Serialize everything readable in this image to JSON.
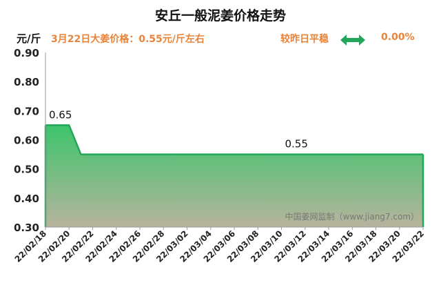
{
  "header": {
    "title": "安丘一般泥姜价格走势",
    "unit": "元/斤",
    "headline": "3月22日大姜价格：0.55元/斤左右",
    "trend_label": "较昨日平稳",
    "trend_icon": "double-arrow-icon",
    "change_pct": "0.00%"
  },
  "chart_data": {
    "type": "area",
    "title": "安丘一般泥姜价格走势",
    "ylabel": "元/斤",
    "ylim": [
      0.3,
      0.9
    ],
    "yticks": [
      "0.30",
      "0.40",
      "0.50",
      "0.60",
      "0.70",
      "0.80",
      "0.90"
    ],
    "xlim": [
      "22/02/18",
      "22/03/22"
    ],
    "xticks": [
      "22/02/18",
      "22/02/20",
      "22/02/22",
      "22/02/24",
      "22/02/26",
      "22/02/28",
      "22/03/02",
      "22/03/04",
      "22/03/06",
      "22/03/08",
      "22/03/10",
      "22/03/12",
      "22/03/14",
      "22/03/16",
      "22/03/18",
      "22/03/20",
      "22/03/22"
    ],
    "points": [
      {
        "x": "22/02/18",
        "y": 0.65
      },
      {
        "x": "22/02/20",
        "y": 0.65
      },
      {
        "x": "22/02/21",
        "y": 0.55
      },
      {
        "x": "22/03/22",
        "y": 0.55
      }
    ],
    "annotations": [
      {
        "text": "0.65",
        "x": "22/02/18",
        "y": 0.65
      },
      {
        "text": "0.55",
        "x": "22/03/10",
        "y": 0.55
      }
    ],
    "grid": false,
    "watermark": "中国姜网监制（www.jiang7.com）",
    "colors": {
      "line": "#22a65a",
      "fill_top": "#3cc46c",
      "fill_bottom": "#b7b49d",
      "trend_icon": "#22a65a",
      "accent_text": "#e8833a"
    }
  }
}
